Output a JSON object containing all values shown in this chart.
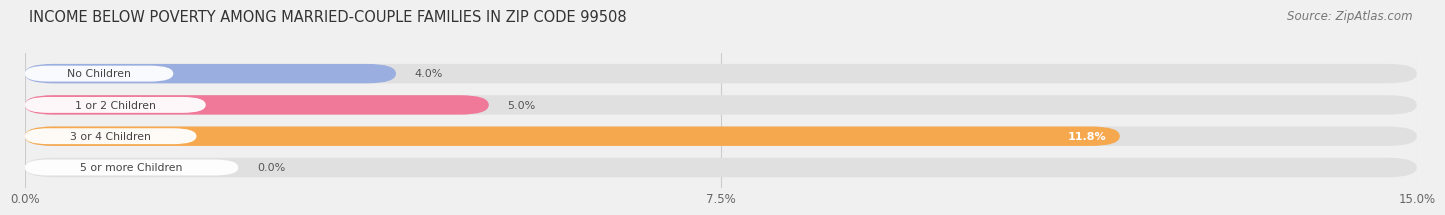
{
  "title": "INCOME BELOW POVERTY AMONG MARRIED-COUPLE FAMILIES IN ZIP CODE 99508",
  "source": "Source: ZipAtlas.com",
  "categories": [
    "No Children",
    "1 or 2 Children",
    "3 or 4 Children",
    "5 or more Children"
  ],
  "values": [
    4.0,
    5.0,
    11.8,
    0.0
  ],
  "bar_colors": [
    "#9baee0",
    "#f07899",
    "#f5a84e",
    "#f0a0a0"
  ],
  "xlim": [
    0,
    15.0
  ],
  "xticks": [
    0.0,
    7.5,
    15.0
  ],
  "xtick_labels": [
    "0.0%",
    "7.5%",
    "15.0%"
  ],
  "title_fontsize": 10.5,
  "source_fontsize": 8.5,
  "bar_height": 0.62,
  "background_color": "#f0f0f0",
  "bar_bg_color": "#e0e0e0"
}
